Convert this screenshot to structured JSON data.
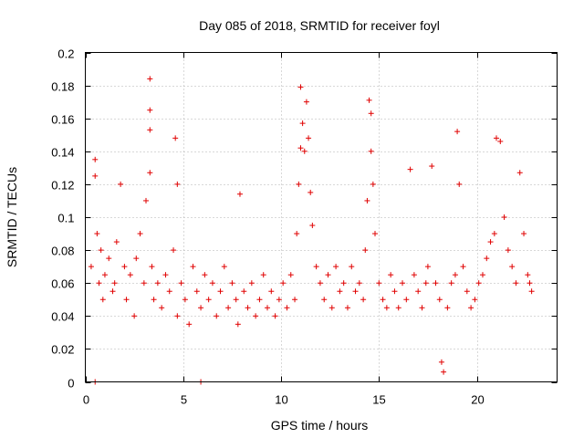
{
  "chart_data": {
    "type": "scatter",
    "title": "Day 085 of 2018, SRMTID for receiver foyl",
    "xlabel": "GPS time / hours",
    "ylabel": "SRMTID / TECUs",
    "xlim": [
      0,
      24.1
    ],
    "ylim": [
      0,
      0.2
    ],
    "grid": true,
    "x_ticks": [
      0,
      5,
      10,
      15,
      20
    ],
    "x_tick_labels": [
      "0",
      "5",
      "10",
      "15",
      "20"
    ],
    "y_ticks": [
      0,
      0.02,
      0.04,
      0.06,
      0.08,
      0.1,
      0.12,
      0.14,
      0.16,
      0.18,
      0.2
    ],
    "y_tick_labels": [
      "0",
      "0.02",
      "0.04",
      "0.06",
      "0.08",
      "0.1",
      "0.12",
      "0.14",
      "0.16",
      "0.18",
      "0.2"
    ],
    "marker": "plus",
    "color": "#e00000",
    "series": [
      {
        "x": [
          0.3,
          0.5,
          0.5,
          0.6,
          0.7,
          0.8,
          0.9,
          1.0,
          1.2,
          1.4,
          1.5,
          1.6,
          1.8,
          2.0,
          2.1,
          2.3,
          2.5,
          2.6,
          2.8,
          3.0,
          3.1,
          3.3,
          3.3,
          3.3,
          3.3,
          3.4,
          3.5,
          3.7,
          3.9,
          4.1,
          4.3,
          4.5,
          4.6,
          4.7,
          4.7,
          4.9,
          5.1,
          5.3,
          5.5,
          5.7,
          5.9,
          6.1,
          6.3,
          6.5,
          6.7,
          6.9,
          7.1,
          7.3,
          7.5,
          7.7,
          7.8,
          7.9,
          8.1,
          8.3,
          8.5,
          8.7,
          8.9,
          9.1,
          9.3,
          9.5,
          9.7,
          9.9,
          10.1,
          10.3,
          10.5,
          10.7,
          10.8,
          10.9,
          11.0,
          11.0,
          11.1,
          11.2,
          11.3,
          11.4,
          11.5,
          11.6,
          11.8,
          12.0,
          12.2,
          12.4,
          12.6,
          12.8,
          13.0,
          13.2,
          13.4,
          13.6,
          13.8,
          14.0,
          14.2,
          14.3,
          14.4,
          14.5,
          14.6,
          14.6,
          14.7,
          14.8,
          15.0,
          15.2,
          15.4,
          15.6,
          15.8,
          16.0,
          16.2,
          16.4,
          16.6,
          16.8,
          17.0,
          17.2,
          17.4,
          17.5,
          17.7,
          17.9,
          18.1,
          18.2,
          18.3,
          18.5,
          18.7,
          18.9,
          19.0,
          19.1,
          19.3,
          19.5,
          19.7,
          19.9,
          20.1,
          20.3,
          20.5,
          20.7,
          20.9,
          21.0,
          21.2,
          21.4,
          21.6,
          21.8,
          22.0,
          22.2,
          22.4,
          22.6,
          22.7,
          22.8
        ],
        "y": [
          0.07,
          0.135,
          0.125,
          0.09,
          0.06,
          0.08,
          0.05,
          0.065,
          0.075,
          0.055,
          0.06,
          0.085,
          0.12,
          0.07,
          0.05,
          0.065,
          0.04,
          0.075,
          0.09,
          0.06,
          0.11,
          0.184,
          0.165,
          0.153,
          0.127,
          0.07,
          0.05,
          0.06,
          0.045,
          0.065,
          0.055,
          0.08,
          0.148,
          0.12,
          0.04,
          0.06,
          0.05,
          0.035,
          0.07,
          0.055,
          0.045,
          0.065,
          0.05,
          0.06,
          0.04,
          0.055,
          0.07,
          0.045,
          0.06,
          0.05,
          0.035,
          0.114,
          0.055,
          0.045,
          0.06,
          0.04,
          0.05,
          0.065,
          0.045,
          0.055,
          0.04,
          0.05,
          0.06,
          0.045,
          0.065,
          0.05,
          0.09,
          0.12,
          0.142,
          0.179,
          0.157,
          0.14,
          0.17,
          0.148,
          0.115,
          0.095,
          0.07,
          0.06,
          0.05,
          0.065,
          0.045,
          0.07,
          0.055,
          0.06,
          0.045,
          0.07,
          0.055,
          0.06,
          0.05,
          0.08,
          0.11,
          0.171,
          0.163,
          0.14,
          0.12,
          0.09,
          0.06,
          0.05,
          0.045,
          0.065,
          0.055,
          0.045,
          0.06,
          0.05,
          0.129,
          0.065,
          0.055,
          0.045,
          0.06,
          0.07,
          0.131,
          0.06,
          0.05,
          0.012,
          0.006,
          0.045,
          0.06,
          0.065,
          0.152,
          0.12,
          0.07,
          0.055,
          0.045,
          0.05,
          0.06,
          0.065,
          0.075,
          0.085,
          0.09,
          0.148,
          0.146,
          0.1,
          0.08,
          0.07,
          0.06,
          0.127,
          0.09,
          0.065,
          0.06,
          0.055
        ]
      },
      {
        "x": [
          0.5,
          5.9
        ],
        "y": [
          0,
          0
        ]
      }
    ]
  }
}
